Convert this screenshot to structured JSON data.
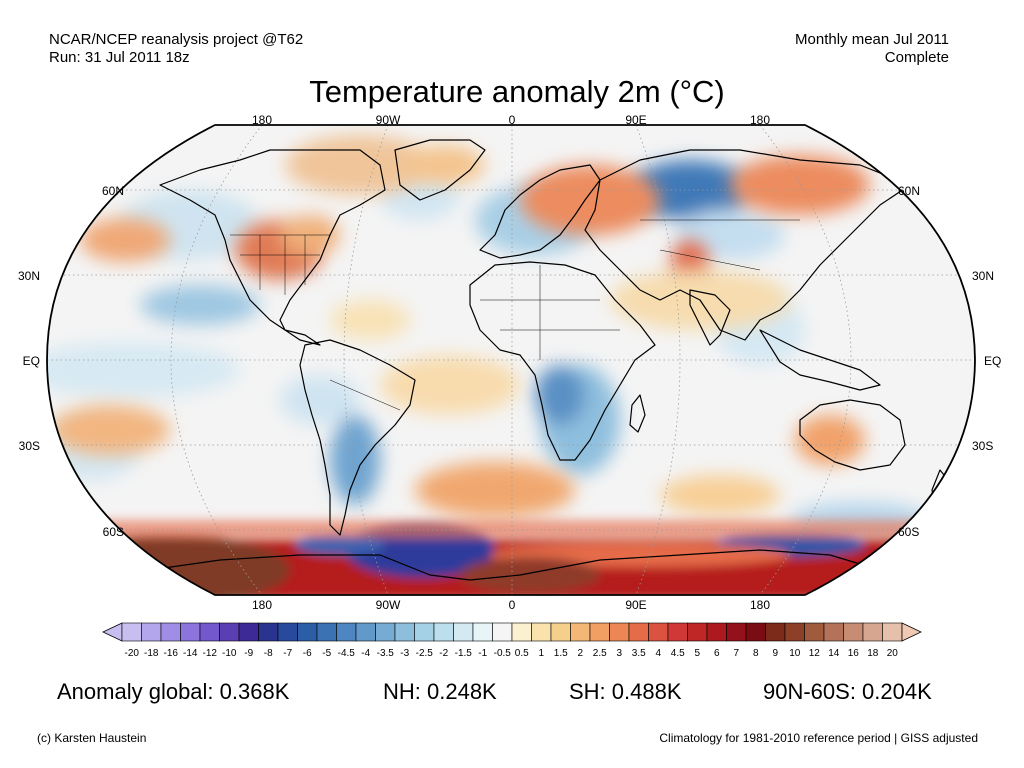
{
  "header": {
    "source_line": "NCAR/NCEP reanalysis project @T62",
    "run_line": "Run: 31 Jul 2011 18z",
    "period_line": "Monthly mean Jul 2011",
    "status_line": "Complete"
  },
  "title": "Temperature anomaly 2m (°C)",
  "map": {
    "projection": "Robinson",
    "lon_labels_top": [
      "180",
      "90W",
      "0",
      "90E",
      "180"
    ],
    "lon_labels_bottom": [
      "180",
      "90W",
      "0",
      "90E",
      "180"
    ],
    "lat_labels_left": [
      "60N",
      "30N",
      "EQ",
      "30S",
      "60S"
    ],
    "lat_labels_right": [
      "60N",
      "30N",
      "EQ",
      "30S",
      "60S"
    ]
  },
  "colorbar": {
    "ticks": [
      "-20",
      "-18",
      "-16",
      "-14",
      "-12",
      "-10",
      "-9",
      "-8",
      "-7",
      "-6",
      "-5",
      "-4.5",
      "-4",
      "-3.5",
      "-3",
      "-2.5",
      "-2",
      "-1.5",
      "-1",
      "-0.5",
      "0.5",
      "1",
      "1.5",
      "2",
      "2.5",
      "3",
      "3.5",
      "4",
      "4.5",
      "5",
      "6",
      "7",
      "8",
      "9",
      "10",
      "12",
      "14",
      "16",
      "18",
      "20"
    ],
    "colors": [
      "#c8bef0",
      "#b4a6ec",
      "#a08ee6",
      "#8b74dc",
      "#7357cc",
      "#5c3eb4",
      "#3d2a96",
      "#2a3490",
      "#284a9c",
      "#2c5ea8",
      "#3a72b4",
      "#4d86c0",
      "#6199ca",
      "#76acd4",
      "#8dbfdd",
      "#a5d1e6",
      "#bddeed",
      "#d3eaf3",
      "#e7f4f8",
      "#f5f5f5",
      "#fbf0d0",
      "#f9e2ac",
      "#f7cf8c",
      "#f4b876",
      "#f19f63",
      "#ec8654",
      "#e56c48",
      "#dc5240",
      "#d03838",
      "#bf2626",
      "#ac1a20",
      "#93111a",
      "#7a0c14",
      "#7c2a1a",
      "#8c4028",
      "#a05a3c",
      "#b4725a",
      "#c68c74",
      "#d6a690",
      "#e6c0aa"
    ],
    "low_arrow_color": "#c8bef0",
    "high_arrow_color": "#f0c8b4"
  },
  "stats": {
    "global": "Anomaly global: 0.368K",
    "nh": "NH: 0.248K",
    "sh": "SH: 0.488K",
    "arctic": "90N-60S: 0.204K"
  },
  "footer": {
    "credit": "(c) Karsten Haustein",
    "note": "Climatology for 1981-2010 reference period | GISS adjusted"
  }
}
